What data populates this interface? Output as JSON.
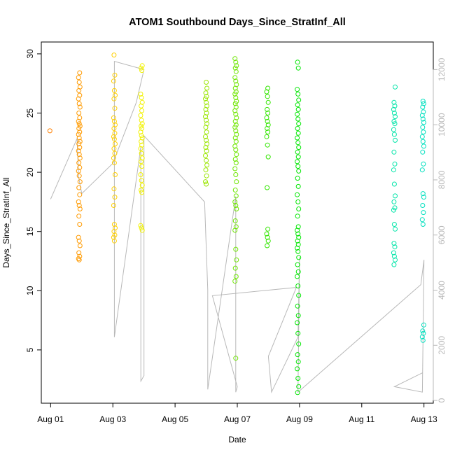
{
  "chart_data": {
    "type": "scatter",
    "title": "ATOM1 Southbound Days_Since_StratInf_All",
    "xlabel": "Date",
    "ylabel": "Days_Since_StratInf_All",
    "ylim": [
      0.5,
      31
    ],
    "y_ticks": [
      5,
      10,
      15,
      20,
      25,
      30
    ],
    "x_range_days": [
      -0.3,
      12.3
    ],
    "x_ticks": [
      {
        "day": 0,
        "label": "Aug 01"
      },
      {
        "day": 2,
        "label": "Aug 03"
      },
      {
        "day": 4,
        "label": "Aug 05"
      },
      {
        "day": 6,
        "label": "Aug 07"
      },
      {
        "day": 8,
        "label": "Aug 09"
      },
      {
        "day": 10,
        "label": "Aug 11"
      },
      {
        "day": 12,
        "label": "Aug 13"
      }
    ],
    "secondary_axis": {
      "ylim": [
        -100,
        13000
      ],
      "ticks": [
        0,
        2000,
        4000,
        6000,
        8000,
        10000,
        12000
      ],
      "color": "#b8b8b8",
      "trace": [
        [
          0.0,
          7300
        ],
        [
          0.85,
          9500
        ],
        [
          0.9,
          8100
        ],
        [
          1.0,
          7500
        ],
        [
          2.0,
          8600
        ],
        [
          2.75,
          10800
        ],
        [
          3.0,
          12000
        ],
        [
          2.05,
          12300
        ],
        [
          2.05,
          2300
        ],
        [
          2.9,
          9200
        ],
        [
          2.9,
          700
        ],
        [
          3.0,
          900
        ],
        [
          3.0,
          9600
        ],
        [
          4.95,
          7200
        ],
        [
          5.05,
          4000
        ],
        [
          5.05,
          400
        ],
        [
          5.95,
          7400
        ],
        [
          5.95,
          300
        ],
        [
          6.0,
          500
        ],
        [
          5.2,
          3800
        ],
        [
          7.9,
          4100
        ],
        [
          7.0,
          1600
        ],
        [
          7.1,
          300
        ],
        [
          7.95,
          2300
        ],
        [
          8.0,
          5200
        ],
        [
          7.95,
          300
        ],
        [
          11.9,
          4200
        ],
        [
          12.0,
          5100
        ],
        [
          11.95,
          300
        ],
        [
          11.05,
          500
        ],
        [
          11.95,
          1000
        ]
      ]
    },
    "point_series": [
      {
        "name": "Aug 01",
        "day": 0.0,
        "color": "#ff7f00",
        "values": [
          23.5
        ]
      },
      {
        "name": "Aug 02",
        "day": 0.92,
        "color": "#ff9a00",
        "values": [
          28.4,
          28.0,
          27.6,
          27.2,
          26.9,
          26.5,
          26.2,
          25.8,
          25.5,
          25.0,
          24.6,
          24.3,
          24.1,
          23.9,
          23.7,
          23.4,
          23.2,
          22.9,
          22.6,
          22.4,
          22.1,
          21.8,
          21.5,
          21.2,
          20.8,
          20.4,
          20.1,
          19.7,
          19.2,
          18.7,
          18.1,
          17.5,
          17.2,
          16.9,
          16.3,
          15.6,
          14.5,
          14.2,
          13.8,
          13.2,
          12.9,
          12.7,
          12.6
        ]
      },
      {
        "name": "Aug 03",
        "day": 2.05,
        "color": "#ffcf00",
        "values": [
          29.9,
          28.2,
          27.7,
          26.9,
          26.5,
          26.2,
          25.4,
          24.6,
          24.3,
          24.0,
          23.7,
          23.3,
          23.0,
          22.8,
          22.4,
          22.0,
          21.6,
          21.2,
          20.8,
          19.8,
          18.6,
          17.9,
          17.2,
          15.6,
          15.3,
          15.0,
          14.7,
          14.5,
          14.2
        ]
      },
      {
        "name": "Aug 04",
        "day": 2.92,
        "color": "#f2f200",
        "values": [
          29.0,
          28.8,
          28.6,
          26.6,
          26.3,
          25.9,
          25.6,
          25.2,
          24.8,
          24.4,
          24.1,
          23.9,
          23.7,
          23.4,
          23.1,
          22.9,
          22.6,
          22.3,
          22.0,
          21.6,
          21.2,
          20.9,
          20.5,
          19.8,
          19.3,
          18.9,
          18.5,
          18.3,
          15.5,
          15.3,
          15.1
        ]
      },
      {
        "name": "Aug 06",
        "day": 5.0,
        "color": "#9ae600",
        "values": [
          27.6,
          27.1,
          26.7,
          26.4,
          26.2,
          25.9,
          25.6,
          25.3,
          25.0,
          24.7,
          24.4,
          24.1,
          23.8,
          23.4,
          23.0,
          22.7,
          22.4,
          22.1,
          21.8,
          21.4,
          21.0,
          20.6,
          20.2,
          19.7,
          19.2,
          19.0
        ]
      },
      {
        "name": "Aug 07",
        "day": 5.95,
        "color": "#6ee600",
        "values": [
          29.6,
          29.3,
          29.0,
          28.8,
          28.5,
          28.0,
          27.7,
          27.4,
          27.1,
          26.8,
          26.6,
          26.3,
          26.0,
          25.8,
          25.5,
          25.2,
          24.9,
          24.6,
          24.3,
          24.0,
          23.8,
          23.5,
          23.2,
          22.9,
          22.6,
          22.2,
          21.9,
          21.5,
          21.1,
          20.8,
          20.3,
          19.8,
          19.2,
          18.5,
          18.0,
          17.5,
          17.2,
          16.9,
          15.9,
          15.4,
          15.1,
          13.5,
          12.6,
          11.9,
          11.2,
          10.8,
          4.3
        ]
      },
      {
        "name": "Aug 08",
        "day": 6.97,
        "color": "#33e600",
        "values": [
          27.1,
          26.8,
          26.4,
          25.9,
          25.3,
          25.0,
          24.6,
          24.3,
          24.0,
          23.7,
          23.4,
          23.0,
          22.3,
          21.3,
          18.7,
          15.2,
          14.8,
          14.5,
          14.2,
          13.8
        ]
      },
      {
        "name": "Aug 09",
        "day": 7.95,
        "color": "#00e600",
        "values": [
          29.3,
          28.8,
          27.0,
          26.6,
          26.1,
          25.7,
          25.3,
          24.9,
          24.5,
          24.1,
          23.7,
          23.3,
          22.9,
          22.5,
          22.1,
          21.7,
          21.3,
          20.9,
          20.5,
          20.1,
          19.5,
          18.8,
          18.1,
          17.5,
          16.9,
          16.3,
          15.4,
          15.1,
          14.8,
          14.5,
          14.2,
          13.9,
          13.6,
          13.3,
          12.8,
          12.2,
          11.6,
          11.2,
          10.4,
          9.6,
          8.7,
          7.9,
          7.3,
          6.4,
          5.5,
          4.6,
          4.0,
          3.4,
          2.6,
          1.9,
          1.4
        ]
      },
      {
        "name": "Aug 12",
        "day": 11.05,
        "color": "#00e5a8",
        "values": [
          27.2,
          25.9,
          25.6,
          25.3,
          25.0,
          24.7,
          24.3,
          24.1,
          23.6,
          23.2,
          22.7,
          21.7,
          20.7,
          20.2,
          19.0,
          18.0,
          17.5,
          17.0,
          16.8,
          15.6,
          15.2,
          14.0,
          13.7,
          13.2,
          12.9,
          12.6,
          12.2
        ]
      },
      {
        "name": "Aug 13",
        "day": 11.97,
        "color": "#00e0bf",
        "values": [
          26.0,
          25.8,
          25.5,
          25.1,
          24.8,
          24.5,
          24.2,
          23.8,
          23.4,
          23.0,
          22.6,
          22.2,
          21.7,
          20.7,
          20.2,
          18.2,
          17.9,
          17.2,
          16.6,
          16.0,
          15.6,
          7.1,
          6.6,
          6.4,
          6.1,
          5.8
        ]
      }
    ]
  }
}
